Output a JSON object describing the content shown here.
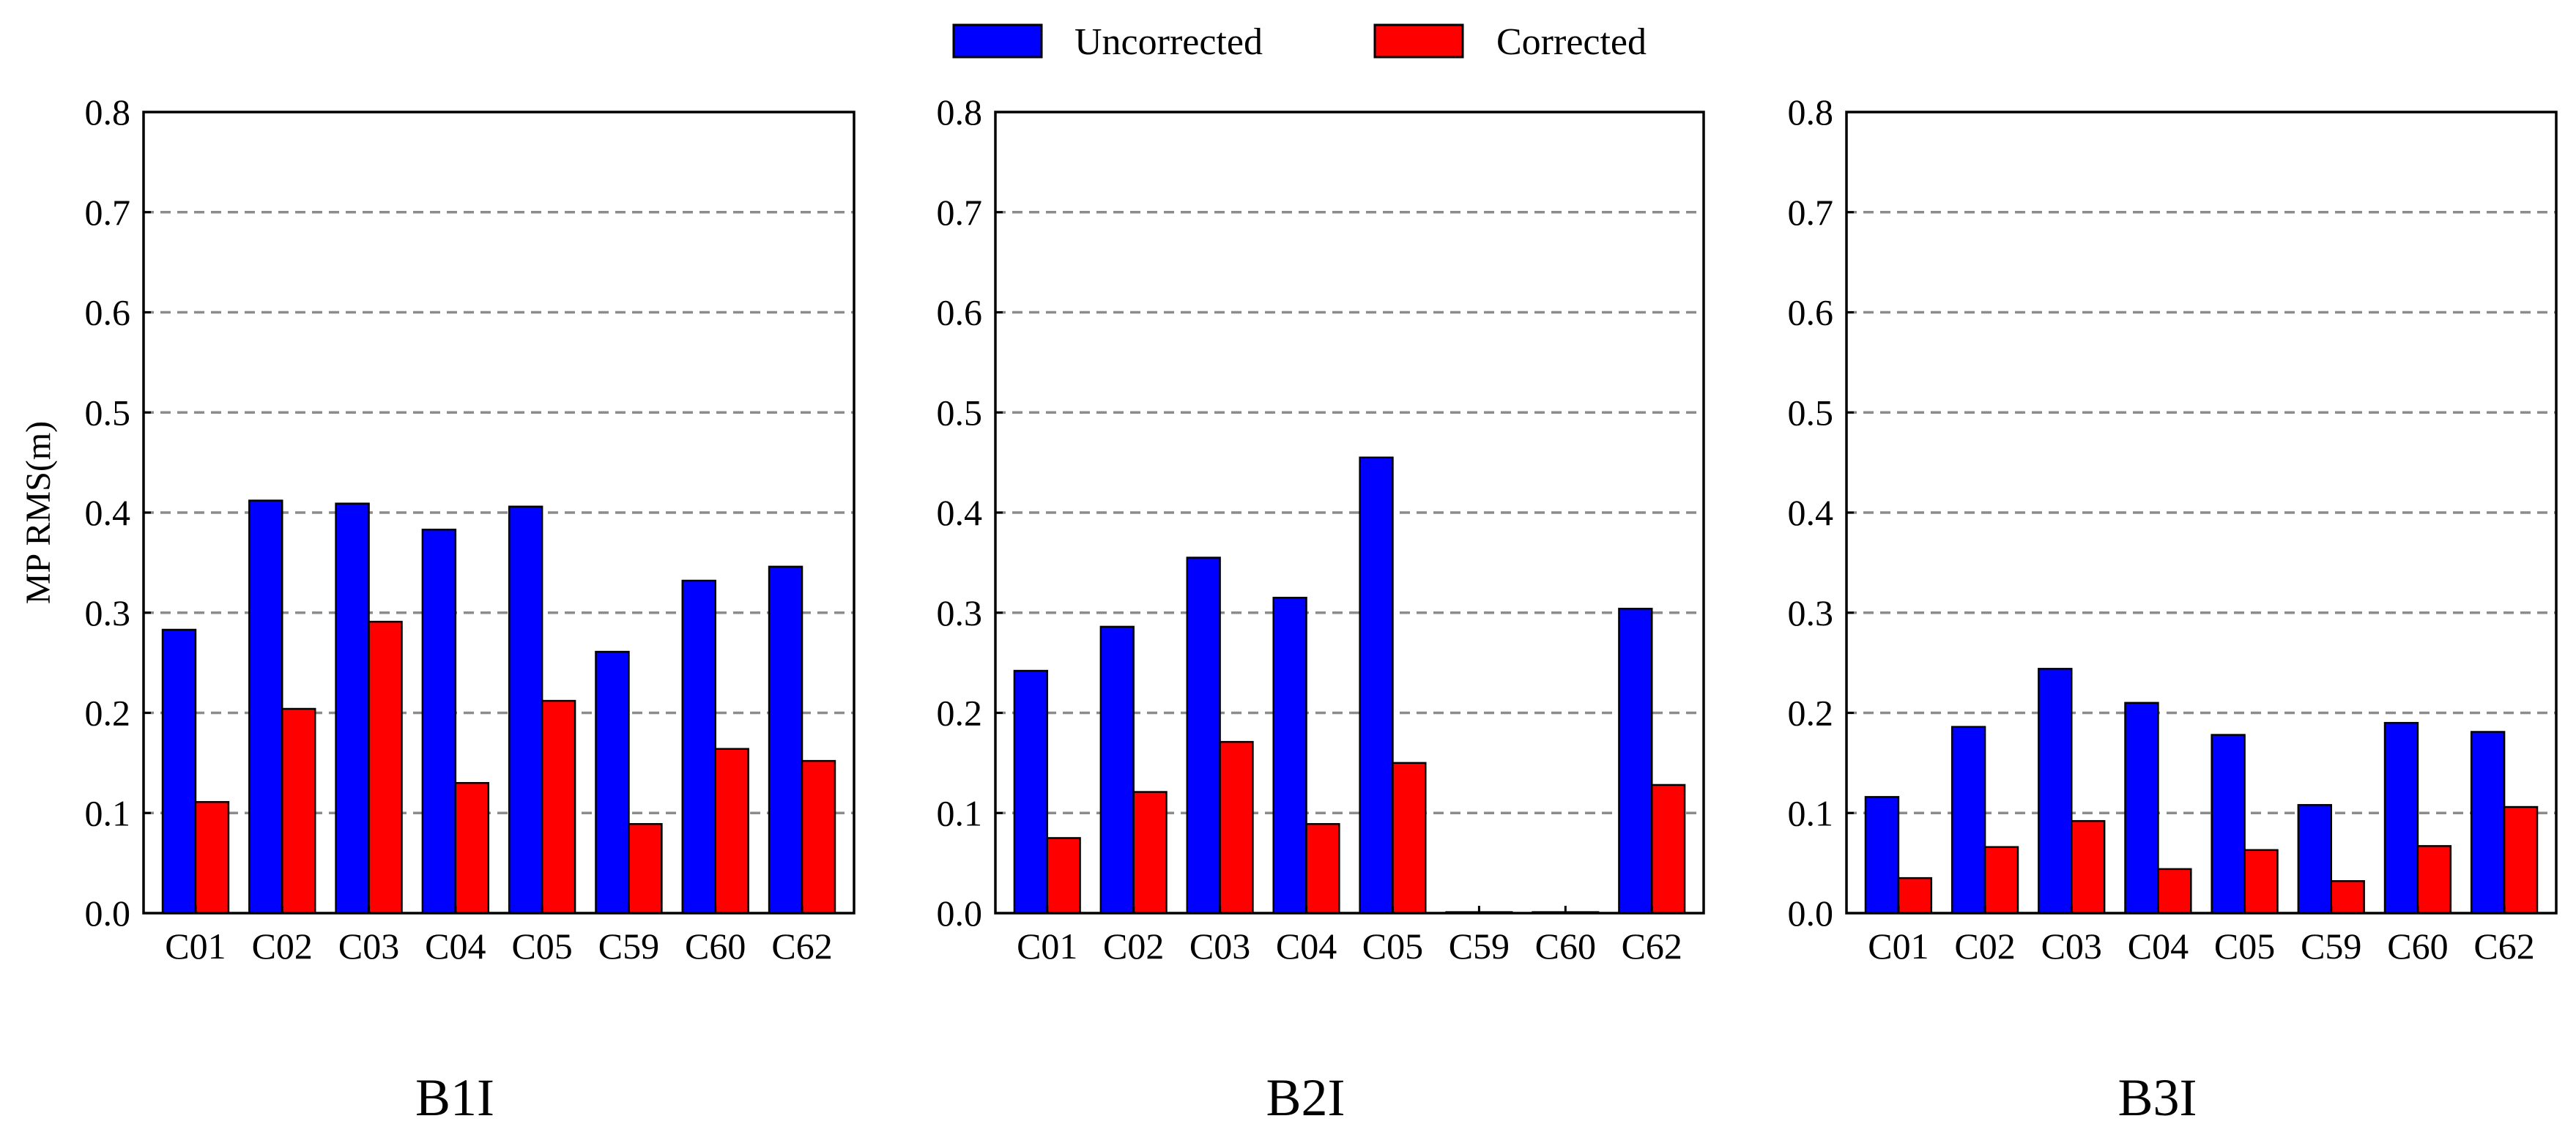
{
  "colors": {
    "uncorrected": "#0000ff",
    "corrected": "#ff0000",
    "grid": "#8c8c8c",
    "axis": "#000000"
  },
  "legend": [
    {
      "key": "uncorrected",
      "label": "Uncorrected"
    },
    {
      "key": "corrected",
      "label": "Corrected"
    }
  ],
  "ylabel": "MP RMS(m)",
  "chart_data": [
    {
      "type": "bar",
      "title": "B1I",
      "ylabel": "MP RMS(m)",
      "ylim": [
        0,
        0.8
      ],
      "yticks": [
        "0.0",
        "0.1",
        "0.2",
        "0.3",
        "0.4",
        "0.5",
        "0.6",
        "0.7",
        "0.8"
      ],
      "grid": "horizontal dashed",
      "categories": [
        "C01",
        "C02",
        "C03",
        "C04",
        "C05",
        "C59",
        "C60",
        "C62"
      ],
      "series": [
        {
          "name": "Uncorrected",
          "values": [
            0.283,
            0.412,
            0.409,
            0.383,
            0.406,
            0.261,
            0.332,
            0.346
          ]
        },
        {
          "name": "Corrected",
          "values": [
            0.111,
            0.204,
            0.291,
            0.13,
            0.212,
            0.089,
            0.164,
            0.152
          ]
        }
      ]
    },
    {
      "type": "bar",
      "title": "B2I",
      "ylabel": "",
      "ylim": [
        0,
        0.8
      ],
      "yticks": [
        "0.0",
        "0.1",
        "0.2",
        "0.3",
        "0.4",
        "0.5",
        "0.6",
        "0.7",
        "0.8"
      ],
      "grid": "horizontal dashed",
      "categories": [
        "C01",
        "C02",
        "C03",
        "C04",
        "C05",
        "C59",
        "C60",
        "C62"
      ],
      "series": [
        {
          "name": "Uncorrected",
          "values": [
            0.242,
            0.286,
            0.355,
            0.315,
            0.455,
            0.001,
            0.001,
            0.304
          ]
        },
        {
          "name": "Corrected",
          "values": [
            0.075,
            0.121,
            0.171,
            0.089,
            0.15,
            0.001,
            0.001,
            0.128
          ]
        }
      ]
    },
    {
      "type": "bar",
      "title": "B3I",
      "ylabel": "",
      "ylim": [
        0,
        0.8
      ],
      "yticks": [
        "0.0",
        "0.1",
        "0.2",
        "0.3",
        "0.4",
        "0.5",
        "0.6",
        "0.7",
        "0.8"
      ],
      "grid": "horizontal dashed",
      "categories": [
        "C01",
        "C02",
        "C03",
        "C04",
        "C05",
        "C59",
        "C60",
        "C62"
      ],
      "series": [
        {
          "name": "Uncorrected",
          "values": [
            0.116,
            0.186,
            0.244,
            0.21,
            0.178,
            0.108,
            0.19,
            0.181
          ]
        },
        {
          "name": "Corrected",
          "values": [
            0.035,
            0.066,
            0.092,
            0.044,
            0.063,
            0.032,
            0.067,
            0.106
          ]
        }
      ]
    }
  ]
}
